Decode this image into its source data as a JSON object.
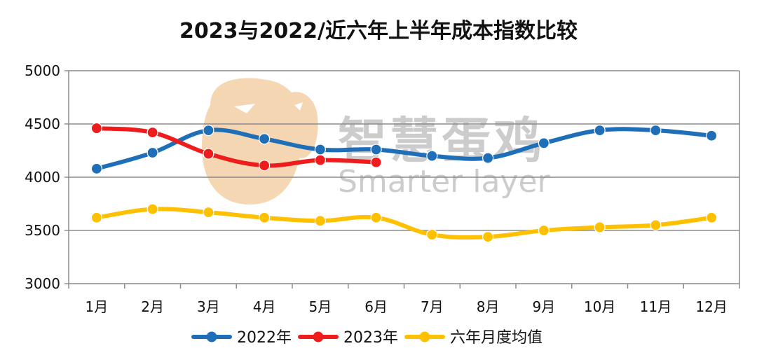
{
  "chart_data": {
    "type": "line",
    "title": "2023与2022/近六年上半年成本指数比较",
    "categories": [
      "1月",
      "2月",
      "3月",
      "4月",
      "5月",
      "6月",
      "7月",
      "8月",
      "9月",
      "10月",
      "11月",
      "12月"
    ],
    "ylim": [
      3000,
      5000
    ],
    "yticks": [
      3000,
      3500,
      4000,
      4500,
      5000
    ],
    "grid": true,
    "legend_position": "bottom",
    "series": [
      {
        "name": "2022年",
        "color": "#1f6fb8",
        "values": [
          4080,
          4230,
          4440,
          4360,
          4260,
          4260,
          4200,
          4180,
          4320,
          4440,
          4440,
          4390
        ]
      },
      {
        "name": "2023年",
        "color": "#ee1c1c",
        "values": [
          4460,
          4420,
          4220,
          4110,
          4160,
          4140,
          null,
          null,
          null,
          null,
          null,
          null
        ]
      },
      {
        "name": "六年月度均值",
        "color": "#ffc000",
        "values": [
          3620,
          3700,
          3670,
          3620,
          3590,
          3620,
          3460,
          3440,
          3500,
          3530,
          3550,
          3620
        ]
      }
    ]
  },
  "watermark": {
    "cn_text": "智慧蛋鸡",
    "en_text": "Smarter layer",
    "color": "#bdbdbd",
    "logo_color": "#f2c99a"
  }
}
